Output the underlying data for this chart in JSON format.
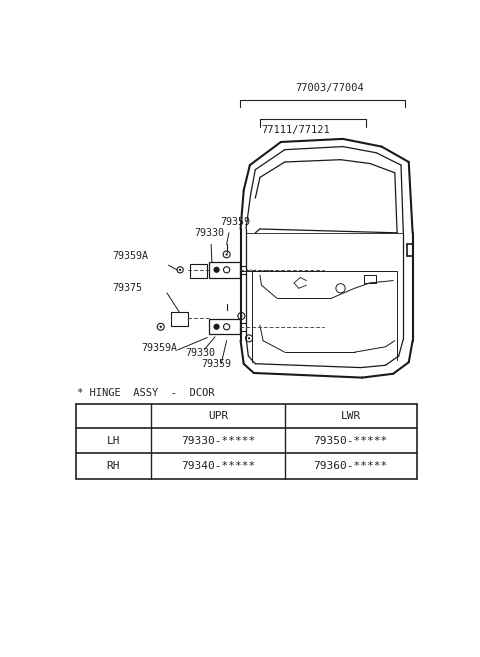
{
  "bg_color": "#ffffff",
  "label_77003": "77003/77004",
  "label_77111": "77111/77121",
  "label_79359_upper": "79359",
  "label_79330_upper": "79330",
  "label_79359A_upper": "79359A",
  "label_79375": "79375",
  "label_79359A_lower": "79359A",
  "label_79330_lower": "79330",
  "label_79359_lower": "79359",
  "hinge_label": "* HINGE  ASSY  -  DCOR",
  "table_col2": "UPR",
  "table_col3": "LWR",
  "table_row1_label": "LH",
  "table_row1_upr": "79330-*****",
  "table_row1_lwr": "79350-*****",
  "table_row2_label": "RH",
  "table_row2_upr": "79340-*****",
  "table_row2_lwr": "79360-*****"
}
